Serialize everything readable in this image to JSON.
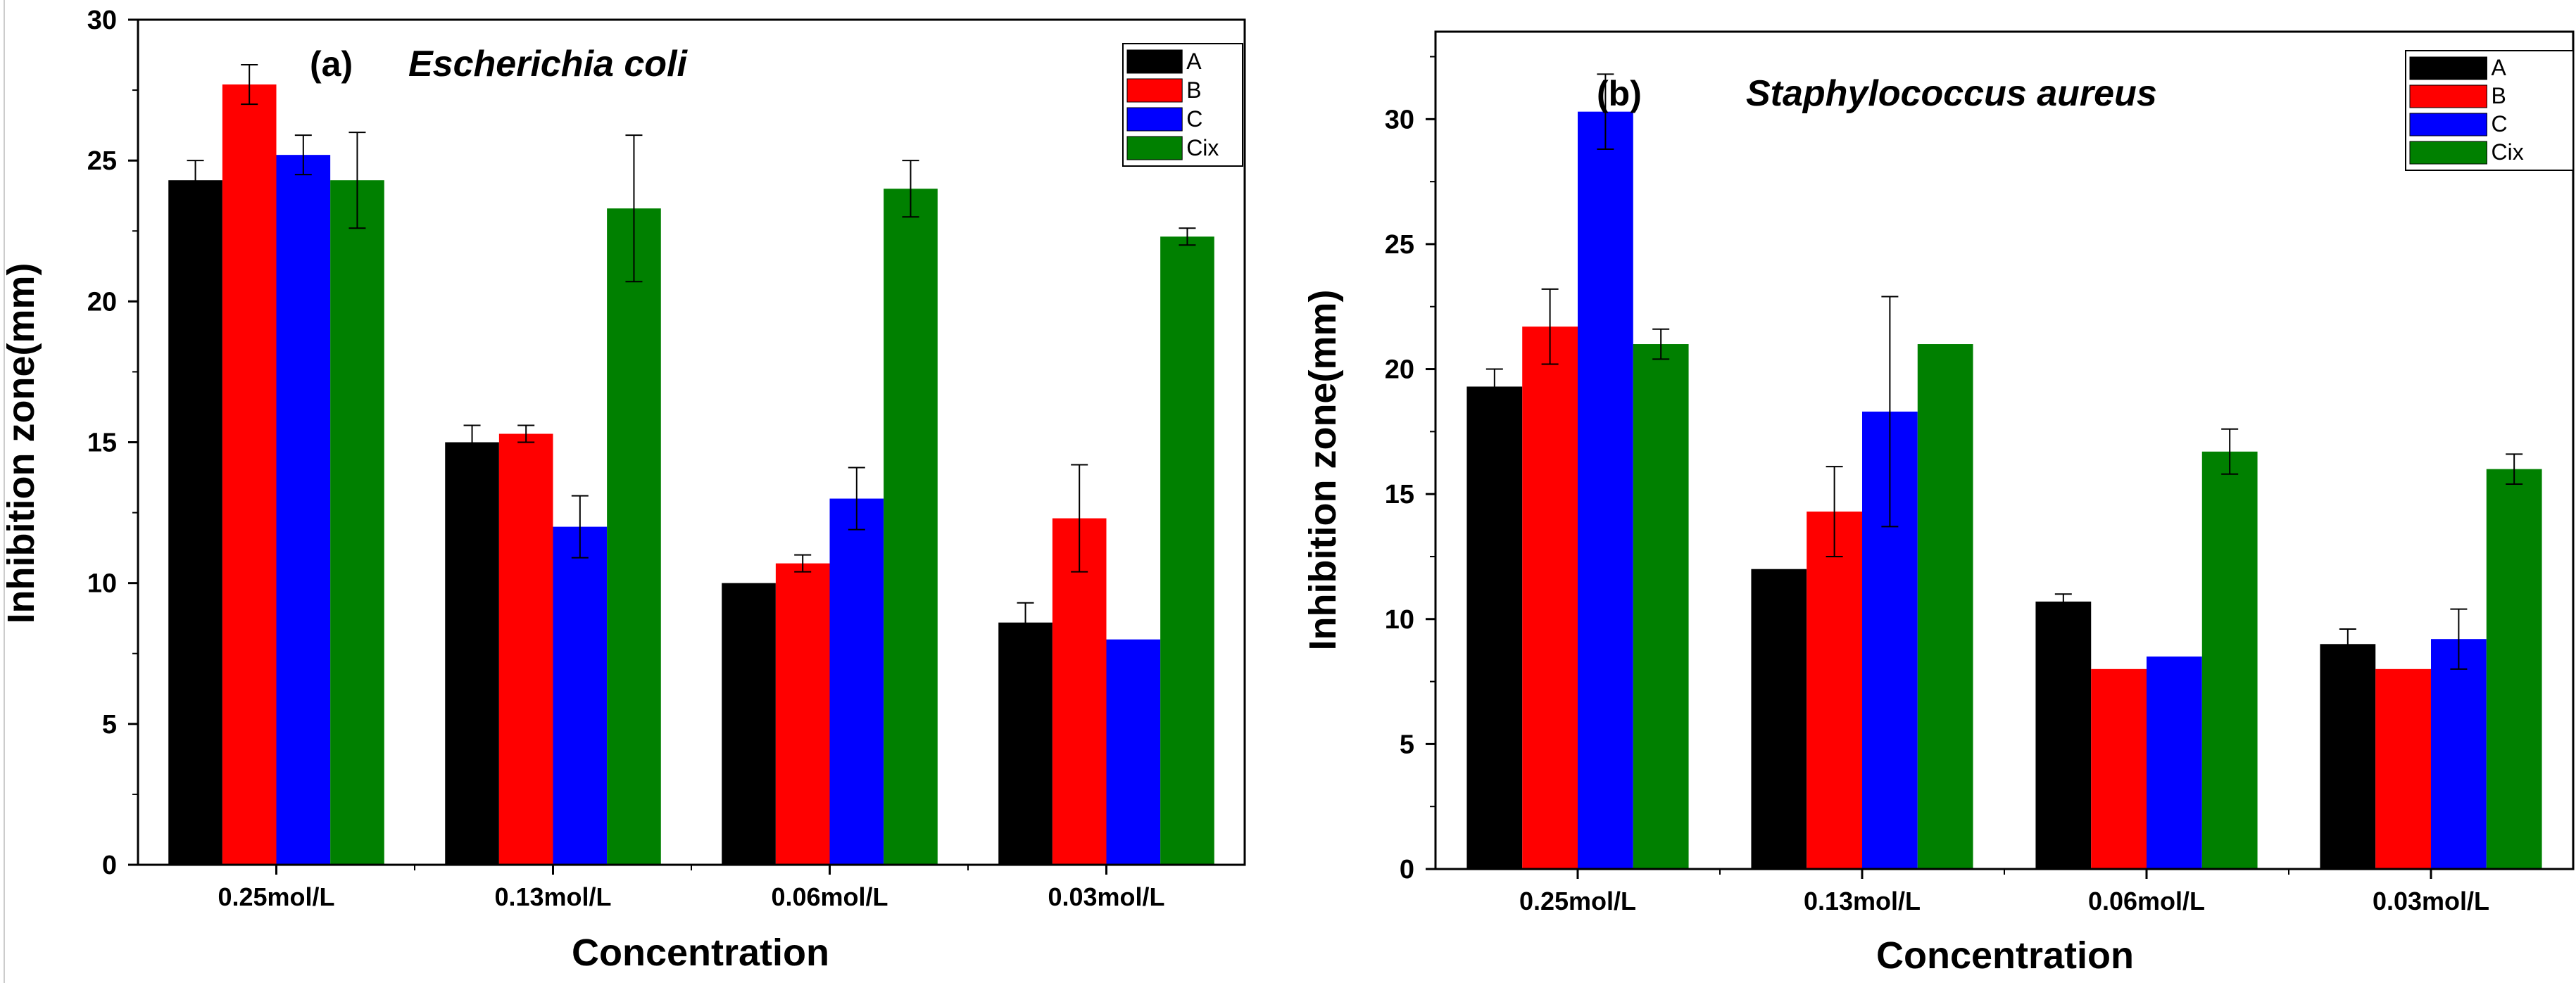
{
  "chart_data": [
    {
      "type": "bar",
      "panel_label": "(a)",
      "title": "Escherichia coli",
      "xlabel": "Concentration",
      "ylabel": "Inhibition zone(mm)",
      "categories": [
        "0.25mol/L",
        "0.13mol/L",
        "0.06mol/L",
        "0.03mol/L"
      ],
      "ylim": [
        0,
        30
      ],
      "yticks": [
        "0",
        "5",
        "10",
        "15",
        "20",
        "25",
        "30"
      ],
      "legend_position": "top-right",
      "series": [
        {
          "name": "A",
          "color": "#000000",
          "values": [
            24.3,
            15.0,
            10.0,
            8.6
          ],
          "errors": [
            0.7,
            0.6,
            0.0,
            0.7
          ]
        },
        {
          "name": "B",
          "color": "#ff0000",
          "values": [
            27.7,
            15.3,
            10.7,
            12.3
          ],
          "errors": [
            0.7,
            0.3,
            0.3,
            1.9
          ]
        },
        {
          "name": "C",
          "color": "#0000ff",
          "values": [
            25.2,
            12.0,
            13.0,
            8.0
          ],
          "errors": [
            0.7,
            1.1,
            1.1,
            0.0
          ]
        },
        {
          "name": "Cix",
          "color": "#008000",
          "values": [
            24.3,
            23.3,
            24.0,
            22.3
          ],
          "errors": [
            1.7,
            2.6,
            1.0,
            0.3
          ]
        }
      ]
    },
    {
      "type": "bar",
      "panel_label": "(b)",
      "title": "Staphylococcus aureus",
      "xlabel": "Concentration",
      "ylabel": "Inhibition zone(mm)",
      "categories": [
        "0.25mol/L",
        "0.13mol/L",
        "0.06mol/L",
        "0.03mol/L"
      ],
      "ylim": [
        0,
        33.5
      ],
      "yticks": [
        "0",
        "5",
        "10",
        "15",
        "20",
        "25",
        "30"
      ],
      "legend_position": "top-right",
      "series": [
        {
          "name": "A",
          "color": "#000000",
          "values": [
            19.3,
            12.0,
            10.7,
            9.0
          ],
          "errors": [
            0.7,
            0.0,
            0.3,
            0.6
          ]
        },
        {
          "name": "B",
          "color": "#ff0000",
          "values": [
            21.7,
            14.3,
            8.0,
            8.0
          ],
          "errors": [
            1.5,
            1.8,
            0.0,
            0.0
          ]
        },
        {
          "name": "C",
          "color": "#0000ff",
          "values": [
            30.3,
            18.3,
            8.5,
            9.2
          ],
          "errors": [
            1.5,
            4.6,
            0.0,
            1.2
          ]
        },
        {
          "name": "Cix",
          "color": "#008000",
          "values": [
            21.0,
            21.0,
            16.7,
            16.0
          ],
          "errors": [
            0.6,
            0.0,
            0.9,
            0.6
          ]
        }
      ]
    }
  ]
}
